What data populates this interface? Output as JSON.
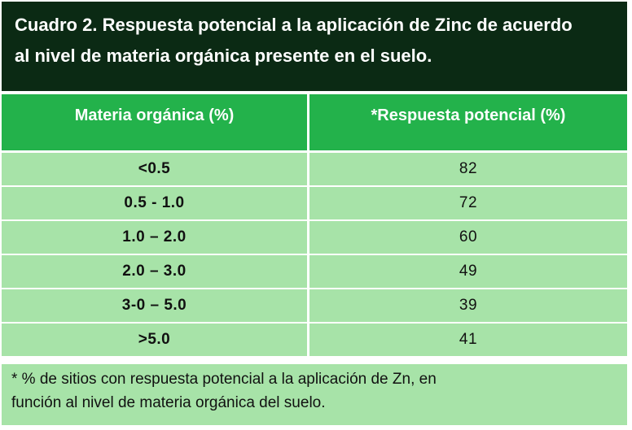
{
  "title": {
    "line1": "Cuadro 2. Respuesta potencial a la aplicación  de Zinc de acuerdo",
    "line2": "al nivel de materia orgánica  presente en el suelo."
  },
  "table": {
    "headers": [
      "Materia orgánica  (%)",
      "*Respuesta potencial (%)"
    ],
    "rows": [
      [
        "<0.5",
        "82"
      ],
      [
        "0.5 - 1.0",
        "72"
      ],
      [
        "1.0 – 2.0",
        "60"
      ],
      [
        "2.0 – 3.0",
        "49"
      ],
      [
        "3-0 – 5.0",
        "39"
      ],
      [
        ">5.0",
        "41"
      ]
    ]
  },
  "footnote": {
    "line1": "* % de sitios con respuesta potencial a la aplicación de Zn, en",
    "line2": "función al nivel de materia orgánica del suelo."
  },
  "colors": {
    "title_bg": "#0b2a14",
    "header_bg": "#23b24b",
    "row_bg": "#a7e3a8"
  }
}
